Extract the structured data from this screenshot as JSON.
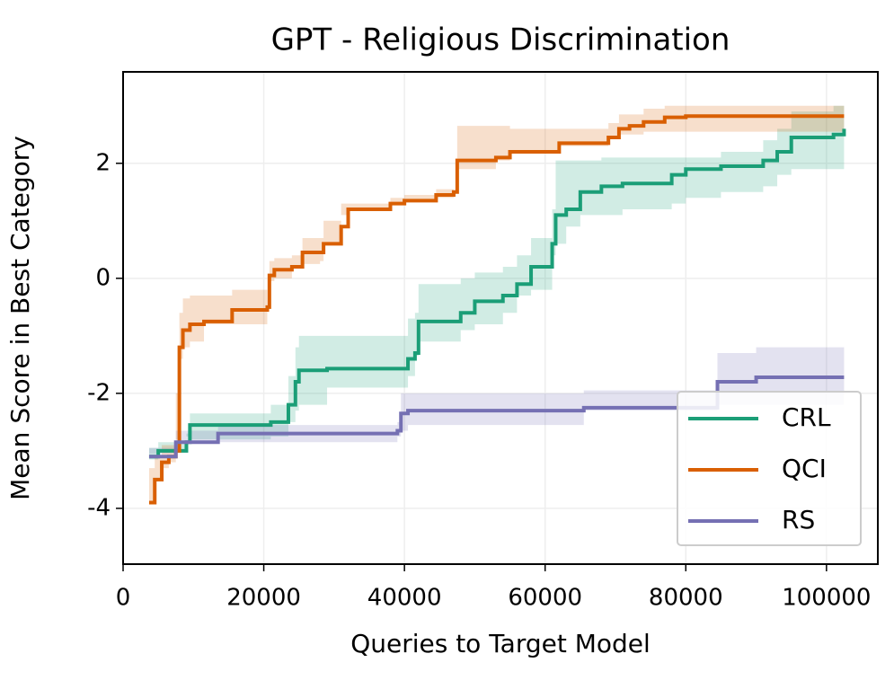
{
  "chart_data": {
    "type": "line",
    "title": "GPT - Religious Discrimination",
    "xlabel": "Queries to Target Model",
    "ylabel": "Mean Score in Best Category",
    "xlim": [
      0,
      107300
    ],
    "ylim": [
      -4.97,
      3.59
    ],
    "xticks": [
      0,
      20000,
      40000,
      60000,
      80000,
      100000
    ],
    "yticks": [
      -4,
      -2,
      0,
      2
    ],
    "grid": true,
    "legend": "lower right",
    "drawstyle": "steps-post",
    "series": [
      {
        "name": "CRL",
        "color": "#1b9e77",
        "x": [
          3700,
          5000,
          9000,
          9500,
          21000,
          23500,
          24500,
          25000,
          29000,
          40500,
          41500,
          42000,
          48000,
          50000,
          54000,
          56000,
          58000,
          61000,
          61500,
          63000,
          65000,
          68000,
          71000,
          78000,
          80000,
          85000,
          91000,
          93000,
          95000,
          101000,
          102500
        ],
        "values": [
          -3.1,
          -3.0,
          -2.85,
          -2.55,
          -2.5,
          -2.2,
          -1.8,
          -1.6,
          -1.57,
          -1.4,
          -1.3,
          -0.75,
          -0.6,
          -0.4,
          -0.3,
          -0.1,
          0.2,
          0.6,
          1.1,
          1.2,
          1.5,
          1.6,
          1.65,
          1.8,
          1.9,
          1.95,
          2.05,
          2.2,
          2.45,
          2.5,
          2.6
        ],
        "lower": [
          -3.2,
          -3.15,
          -3.0,
          -2.75,
          -2.8,
          -2.75,
          -2.5,
          -2.3,
          -2.2,
          -1.9,
          -1.7,
          -1.35,
          -1.1,
          -0.9,
          -0.8,
          -0.6,
          -0.3,
          -0.2,
          0.4,
          0.6,
          0.9,
          1.1,
          1.1,
          1.2,
          1.3,
          1.4,
          1.5,
          1.6,
          1.8,
          1.9,
          1.9
        ],
        "upper": [
          -2.95,
          -2.85,
          -2.7,
          -2.35,
          -2.2,
          -1.7,
          -1.2,
          -1.0,
          -1.0,
          -0.7,
          -0.6,
          -0.1,
          0.0,
          0.1,
          0.2,
          0.4,
          0.7,
          1.2,
          2.05,
          2.05,
          2.05,
          2.1,
          2.1,
          2.1,
          2.1,
          2.2,
          2.4,
          2.6,
          2.9,
          3.0,
          3.1
        ]
      },
      {
        "name": "QCI",
        "color": "#d95f02",
        "x": [
          3700,
          4500,
          5500,
          6500,
          7500,
          8000,
          8500,
          9500,
          11500,
          15500,
          20500,
          20800,
          21500,
          24000,
          25500,
          28000,
          28500,
          31000,
          32000,
          38000,
          40000,
          44500,
          47000,
          47500,
          53000,
          55000,
          62000,
          69000,
          70500,
          72000,
          74000,
          77000,
          80000,
          102500
        ],
        "values": [
          -3.9,
          -3.5,
          -3.2,
          -3.1,
          -3.0,
          -1.2,
          -0.9,
          -0.8,
          -0.75,
          -0.55,
          -0.5,
          0.05,
          0.15,
          0.2,
          0.45,
          0.45,
          0.6,
          0.9,
          1.2,
          1.3,
          1.35,
          1.45,
          1.5,
          2.05,
          2.1,
          2.2,
          2.35,
          2.45,
          2.6,
          2.65,
          2.72,
          2.8,
          2.82,
          2.82
        ],
        "lower": [
          -4.5,
          -3.9,
          -3.5,
          -3.3,
          -3.2,
          -2.0,
          -1.4,
          -1.2,
          -1.1,
          -0.8,
          -0.8,
          -0.2,
          -0.05,
          0.0,
          0.2,
          0.25,
          0.3,
          0.6,
          1.1,
          1.2,
          1.3,
          1.35,
          1.4,
          1.6,
          1.9,
          2.05,
          2.2,
          2.3,
          2.45,
          2.5,
          2.5,
          2.55,
          2.55,
          2.55
        ],
        "upper": [
          -3.3,
          -3.1,
          -2.9,
          -2.9,
          -2.8,
          -0.6,
          -0.35,
          -0.3,
          -0.3,
          -0.2,
          -0.2,
          0.3,
          0.35,
          0.4,
          0.7,
          0.7,
          1.0,
          1.3,
          1.3,
          1.4,
          1.45,
          1.55,
          1.6,
          2.65,
          2.65,
          2.6,
          2.6,
          2.7,
          2.85,
          2.85,
          2.95,
          3.0,
          3.0,
          3.0
        ]
      },
      {
        "name": "RS",
        "color": "#7570b3",
        "x": [
          3700,
          7500,
          13500,
          39000,
          39500,
          40500,
          65500,
          84500,
          90000,
          102500
        ],
        "values": [
          -3.1,
          -2.85,
          -2.7,
          -2.65,
          -2.35,
          -2.3,
          -2.25,
          -1.8,
          -1.72,
          -1.72
        ],
        "lower": [
          -3.2,
          -3.05,
          -2.85,
          -2.85,
          -2.75,
          -2.65,
          -2.55,
          -2.3,
          -2.2,
          -2.2
        ],
        "upper": [
          -2.95,
          -2.65,
          -2.55,
          -2.5,
          -2.0,
          -2.0,
          -1.95,
          -1.3,
          -1.2,
          -1.2
        ]
      }
    ]
  }
}
